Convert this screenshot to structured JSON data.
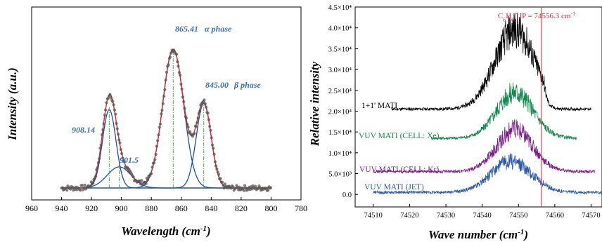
{
  "chart_data": [
    {
      "type": "line",
      "xlabel": "Wavelength (cm-1)",
      "ylabel": "Intensity (a.u.)",
      "xlim": [
        960,
        780
      ],
      "x_reversed": true,
      "x_ticks": [
        960,
        940,
        920,
        900,
        880,
        860,
        840,
        820,
        800,
        780
      ],
      "y_ticks_visible": false,
      "data_x_range": [
        940,
        800
      ],
      "baseline": 0.05,
      "peaks": [
        {
          "center": 908.14,
          "amplitude": 0.52,
          "width": 4.5,
          "label": "908.14"
        },
        {
          "center": 901.5,
          "amplitude": 0.14,
          "width": 8.0,
          "label": "901.5"
        },
        {
          "center": 865.41,
          "amplitude": 0.92,
          "width": 7.0,
          "label": "865.41",
          "phase": "α phase"
        },
        {
          "center": 845.0,
          "amplitude": 0.56,
          "width": 5.0,
          "label": "845.00",
          "phase": "β phase"
        }
      ],
      "labels": {
        "p1": "908.14",
        "p2": "901.5",
        "p3": "865.41",
        "p3_phase": "α phase",
        "p4": "845.00",
        "p4_phase": "β phase"
      },
      "colors": {
        "points": "#555555",
        "envelope": "#e2242b",
        "component": "#1f4e9c",
        "marker": "#3cb44b"
      }
    },
    {
      "type": "line",
      "xlabel": "Wave number (cm-1)",
      "ylabel": "Relative intensity",
      "xlim": [
        74505,
        74573
      ],
      "ylim": [
        -3000,
        45000
      ],
      "x_ticks": [
        74510,
        74520,
        74530,
        74540,
        74550,
        74560,
        74570
      ],
      "y_ticks": [
        {
          "value": 0,
          "label": "0.0"
        },
        {
          "value": 5000,
          "label": "5.0×10³"
        },
        {
          "value": 10000,
          "label": "1.0×10⁴"
        },
        {
          "value": 15000,
          "label": "1.5×10⁴"
        },
        {
          "value": 20000,
          "label": "2.0×10⁴"
        },
        {
          "value": 25000,
          "label": "2.5×10⁴"
        },
        {
          "value": 30000,
          "label": "3.0×10⁴"
        },
        {
          "value": 35000,
          "label": "3.5×10⁴"
        },
        {
          "value": 40000,
          "label": "4.0×10⁴"
        },
        {
          "value": 45000,
          "label": "4.5×10⁴"
        }
      ],
      "ip_line": {
        "x": 74556.3,
        "label": "C6H6+ IP = 74556.3 cm-1",
        "color": "#e2242b"
      },
      "series": [
        {
          "name": "1+1' MATI",
          "color": "#000000",
          "x_range": [
            74515,
            74570
          ],
          "base": 20500,
          "peak_height": 19000,
          "peak_x": 74549,
          "width": 5.5
        },
        {
          "name": "VUV MATI (CELL:  Xe)",
          "color": "#138a4e",
          "x_range": [
            74526,
            74566
          ],
          "base": 13500,
          "peak_height": 11000,
          "peak_x": 74549,
          "width": 5.0
        },
        {
          "name": "VUV MATI (CELL:  Kr)",
          "color": "#7a1f8a",
          "x_range": [
            74510,
            74571
          ],
          "base": 5500,
          "peak_height": 10000,
          "peak_x": 74549,
          "width": 5.0
        },
        {
          "name": "VUV MATI (JET)",
          "color": "#2a56a6",
          "x_range": [
            74510,
            74573
          ],
          "base": 500,
          "peak_height": 7500,
          "peak_x": 74548,
          "width": 5.5
        }
      ]
    }
  ]
}
